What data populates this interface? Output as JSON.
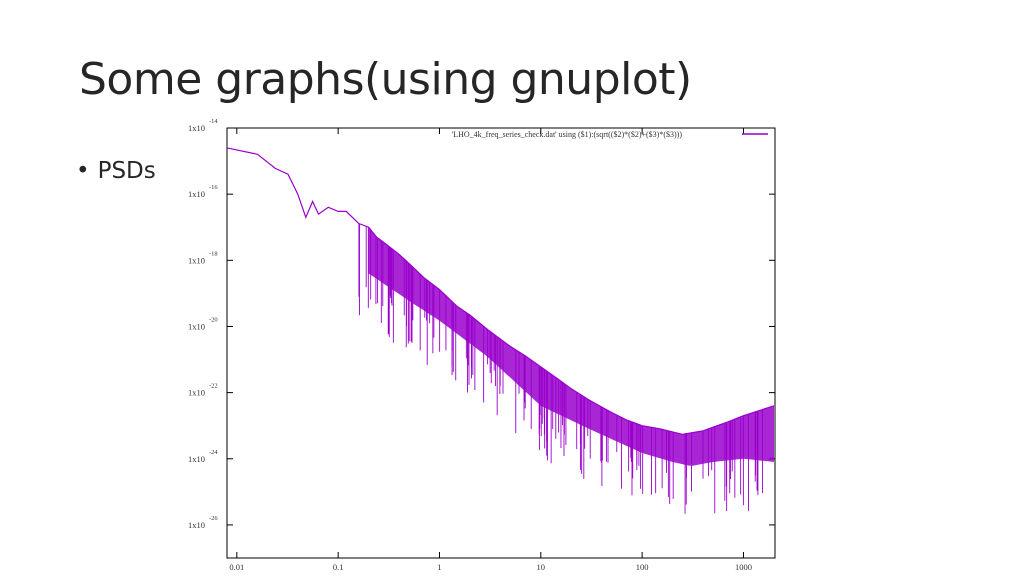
{
  "slide": {
    "title": "Some graphs(using gnuplot)",
    "bullet": "PSDs"
  },
  "chart_data": {
    "type": "line",
    "title": "",
    "legend": {
      "label": "'LHO_4k_freq_series_check.dat' using ($1):(sqrt(($2)*($2)+($3)*($3)))",
      "position": "top-right"
    },
    "series_color": "#9900cc",
    "xscale": "log",
    "yscale": "log",
    "xlim": [
      0.008,
      2048
    ],
    "ylim": [
      1e-27,
      1e-14
    ],
    "x_ticks": [
      "0.01",
      "0.1",
      "1",
      "10",
      "100",
      "1000"
    ],
    "y_tick_base": "1x10",
    "y_tick_exponents": [
      "-14",
      "-16",
      "-18",
      "-20",
      "-22",
      "-24",
      "-26"
    ],
    "series": [
      {
        "x": [
          0.008,
          0.016,
          0.024,
          0.032,
          0.04,
          0.048,
          0.056,
          0.064,
          0.08,
          0.1,
          0.12,
          0.16,
          0.2,
          0.24,
          0.3,
          0.4,
          0.5,
          0.7,
          1,
          1.5,
          2,
          3,
          5,
          7,
          10,
          15,
          20,
          30,
          50,
          70,
          100,
          150,
          200,
          250,
          300,
          400,
          500,
          700,
          1000,
          1500,
          2000
        ],
        "y": [
          2.5e-15,
          1.6e-15,
          6e-16,
          4e-16,
          1e-16,
          2e-17,
          6e-17,
          2.5e-17,
          4e-17,
          3e-17,
          3e-17,
          1.3e-17,
          1e-17,
          5e-18,
          3e-18,
          1.5e-18,
          8e-19,
          3e-19,
          1.3e-19,
          4e-20,
          2.2e-20,
          8e-21,
          2.5e-21,
          1.3e-21,
          6e-22,
          2.5e-22,
          1.3e-22,
          6e-23,
          2.5e-23,
          1.5e-23,
          1e-23,
          8e-24,
          6.5e-24,
          5.5e-24,
          6e-24,
          7e-24,
          9e-24,
          1.3e-23,
          2e-23,
          3e-23,
          4e-23
        ]
      }
    ],
    "noise_floor": {
      "x": [
        0.2,
        0.5,
        1,
        3,
        10,
        30,
        100,
        200,
        300,
        500,
        1000,
        2000
      ],
      "y": [
        4e-19,
        6e-20,
        1.5e-20,
        1.2e-21,
        4e-23,
        8e-24,
        1.5e-24,
        8e-25,
        6e-25,
        8e-25,
        1e-24,
        8e-25
      ]
    }
  }
}
